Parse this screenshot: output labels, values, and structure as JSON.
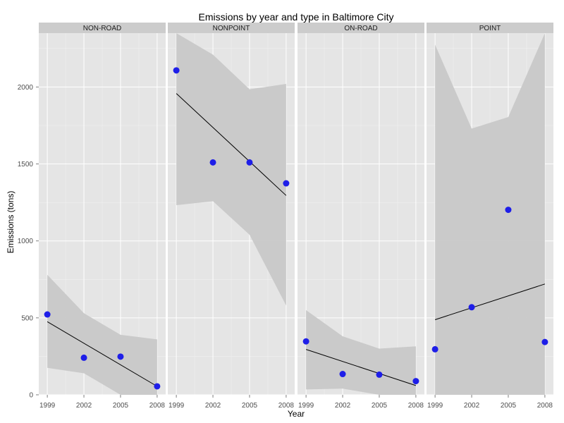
{
  "chart_data": {
    "type": "scatter",
    "title": "Emissions by year and type in Baltimore City",
    "xlabel": "Year",
    "ylabel": "Emissions (tons)",
    "x_ticks": [
      1999,
      2002,
      2005,
      2008
    ],
    "y_ticks": [
      0,
      500,
      1000,
      1500,
      2000
    ],
    "xlim": [
      1998.3,
      2008.7
    ],
    "ylim": [
      0,
      2350
    ],
    "grid": true,
    "colors": {
      "point": "#1e1ee8",
      "ribbon": "#c8c8c8",
      "panel": "#e5e5e5",
      "strip": "#cccccc",
      "line": "#000000"
    },
    "panels": [
      {
        "name": "NON-ROAD",
        "points": [
          [
            1999,
            522
          ],
          [
            2002,
            241
          ],
          [
            2005,
            248
          ],
          [
            2008,
            55
          ]
        ],
        "fit": [
          [
            1999,
            475
          ],
          [
            2008,
            55
          ]
        ],
        "band": [
          [
            1999,
            175,
            780
          ],
          [
            2002,
            140,
            530
          ],
          [
            2005,
            0,
            390
          ],
          [
            2008,
            0,
            360
          ]
        ]
      },
      {
        "name": "NONPOINT",
        "points": [
          [
            1999,
            2108
          ],
          [
            2002,
            1510
          ],
          [
            2005,
            1510
          ],
          [
            2008,
            1374
          ]
        ],
        "fit": [
          [
            1999,
            1958
          ],
          [
            2008,
            1295
          ]
        ],
        "band": [
          [
            1999,
            1232,
            2350
          ],
          [
            2002,
            1258,
            2210
          ],
          [
            2005,
            1040,
            1985
          ],
          [
            2008,
            580,
            2020
          ]
        ]
      },
      {
        "name": "ON-ROAD",
        "points": [
          [
            1999,
            347
          ],
          [
            2002,
            135
          ],
          [
            2005,
            131
          ],
          [
            2008,
            89
          ]
        ],
        "fit": [
          [
            1999,
            295
          ],
          [
            2008,
            60
          ]
        ],
        "band": [
          [
            1999,
            35,
            550
          ],
          [
            2002,
            40,
            380
          ],
          [
            2005,
            0,
            300
          ],
          [
            2008,
            0,
            315
          ]
        ]
      },
      {
        "name": "POINT",
        "points": [
          [
            1999,
            296
          ],
          [
            2002,
            569
          ],
          [
            2005,
            1202
          ],
          [
            2008,
            343
          ]
        ],
        "fit": [
          [
            1999,
            488
          ],
          [
            2008,
            720
          ]
        ],
        "band": [
          [
            1999,
            0,
            2275
          ],
          [
            2002,
            0,
            1730
          ],
          [
            2005,
            0,
            1805
          ],
          [
            2008,
            0,
            2350
          ]
        ]
      }
    ]
  }
}
